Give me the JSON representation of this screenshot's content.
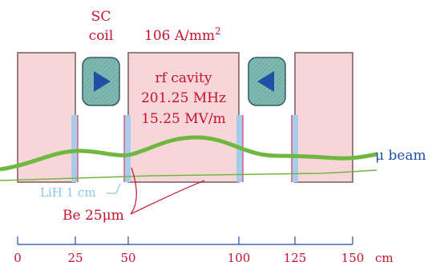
{
  "labels": {
    "sc_coil_line1": "SC",
    "sc_coil_line2": "coil",
    "current_density_base": "106 A/mm",
    "current_density_exp": "2",
    "rf_line1": "rf cavity",
    "rf_line2": "201.25 MHz",
    "rf_line3": "15.25 MV/m",
    "mu_beam": "μ beam",
    "lih": "LiH 1 cm",
    "be": "Be 25μm"
  },
  "scale": {
    "unit": "cm",
    "ticks": [
      "0",
      "25",
      "50",
      "100",
      "125",
      "150"
    ]
  },
  "colors": {
    "block_fill": "#f6d6d8",
    "block_stroke": "#7a5a5a",
    "window_fill": "#a8cdea",
    "window_edge": "#d65a8a",
    "coil_fill": "#7fb8b0",
    "coil_arrow": "#1f4fa8",
    "beam": "#6fb83f",
    "text_red": "#c8102e",
    "text_blue": "#1f4fa8",
    "text_lightblue": "#8ec6e6"
  },
  "coils": [
    {
      "direction": "right"
    },
    {
      "direction": "left"
    }
  ]
}
